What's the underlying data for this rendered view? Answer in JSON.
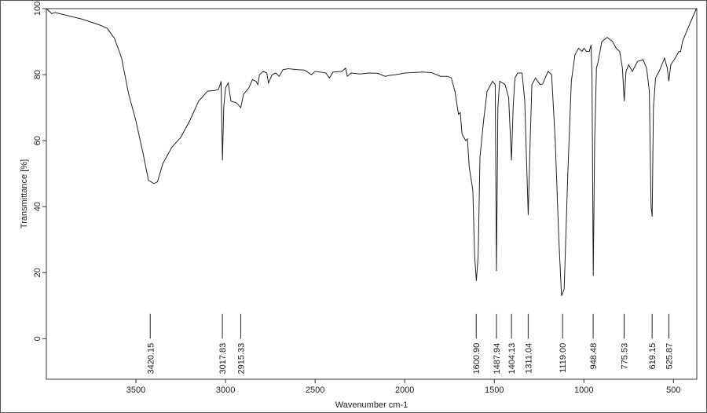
{
  "chart_data": {
    "type": "line",
    "title": "",
    "xlabel": "Wavenumber cm-1",
    "ylabel": "Transmittance [%]",
    "xlim": [
      4000,
      370
    ],
    "ylim": [
      -12.3,
      100
    ],
    "x_reversed": true,
    "grid": false,
    "line_color": "#222222",
    "x_ticks": [
      3500,
      3000,
      2500,
      2000,
      1500,
      1000,
      500
    ],
    "y_ticks": [
      0,
      20,
      40,
      60,
      80,
      100
    ],
    "peak_labels": [
      "3420.15",
      "3017.83",
      "2915.33",
      "1600.90",
      "1487.94",
      "1404.13",
      "1311.04",
      "1119.00",
      "948.48",
      "775.53",
      "619.15",
      "525.87"
    ],
    "series": [
      {
        "x": [
          4000,
          3970,
          3950,
          3800,
          3700,
          3660,
          3620,
          3580,
          3540,
          3500,
          3460,
          3430,
          3400,
          3380,
          3350,
          3300,
          3250,
          3200,
          3150,
          3100,
          3060,
          3040,
          3030,
          3025,
          3017,
          3010,
          3000,
          2985,
          2970,
          2940,
          2915,
          2900,
          2870,
          2850,
          2830,
          2820,
          2810,
          2790,
          2770,
          2760,
          2740,
          2720,
          2700,
          2680,
          2650,
          2600,
          2560,
          2520,
          2500,
          2440,
          2420,
          2400,
          2350,
          2330,
          2320,
          2300,
          2250,
          2200,
          2150,
          2110,
          2080,
          2050,
          2000,
          1900,
          1850,
          1800,
          1760,
          1740,
          1720,
          1700,
          1690,
          1680,
          1660,
          1650,
          1640,
          1620,
          1610,
          1600,
          1590,
          1580,
          1560,
          1540,
          1510,
          1495,
          1488,
          1480,
          1470,
          1440,
          1420,
          1404,
          1395,
          1385,
          1370,
          1345,
          1330,
          1311,
          1300,
          1290,
          1270,
          1245,
          1230,
          1200,
          1180,
          1160,
          1140,
          1125,
          1110,
          1090,
          1070,
          1050,
          1030,
          1010,
          1000,
          985,
          970,
          960,
          955,
          948,
          940,
          930,
          920,
          900,
          870,
          840,
          820,
          800,
          785,
          775,
          765,
          750,
          730,
          700,
          670,
          650,
          635,
          625,
          619,
          612,
          600,
          580,
          550,
          535,
          526,
          515,
          490,
          470,
          460,
          450,
          420,
          372
        ],
        "y": [
          100,
          98.5,
          98.8,
          96.8,
          95,
          94,
          91,
          85,
          74,
          66,
          56,
          48,
          47,
          47.5,
          53,
          58,
          61,
          66,
          72,
          75,
          75.2,
          75.5,
          77,
          78,
          54,
          70,
          76,
          77.5,
          72,
          71.5,
          70,
          74,
          76,
          78.5,
          78,
          77,
          80,
          81,
          80.5,
          77.5,
          80,
          80.5,
          79.5,
          81.5,
          81.8,
          81.5,
          81.4,
          80,
          81,
          80.5,
          79,
          80.8,
          81,
          82,
          79.5,
          80.5,
          80.2,
          80.5,
          80.4,
          79.5,
          79.8,
          80,
          80.5,
          80.8,
          80.6,
          79.5,
          79.5,
          79,
          75,
          68,
          68.5,
          62,
          60,
          60.5,
          52,
          45,
          25,
          17.5,
          25,
          55,
          66,
          75,
          78,
          77,
          20.5,
          70,
          78,
          77,
          73,
          54,
          70,
          79,
          80.5,
          80.5,
          72,
          37.5,
          60,
          77,
          79,
          77,
          77.2,
          81,
          80,
          60,
          30,
          13,
          15,
          50,
          78,
          86,
          88,
          87,
          88,
          87,
          87,
          89,
          80,
          19,
          60,
          82,
          84,
          90,
          91.3,
          90,
          88,
          87,
          82,
          72,
          81,
          83,
          81,
          84,
          84.5,
          82,
          75,
          40,
          37,
          70,
          79,
          81,
          85,
          82,
          78,
          83,
          85,
          87,
          87,
          90,
          94,
          100
        ]
      }
    ]
  }
}
